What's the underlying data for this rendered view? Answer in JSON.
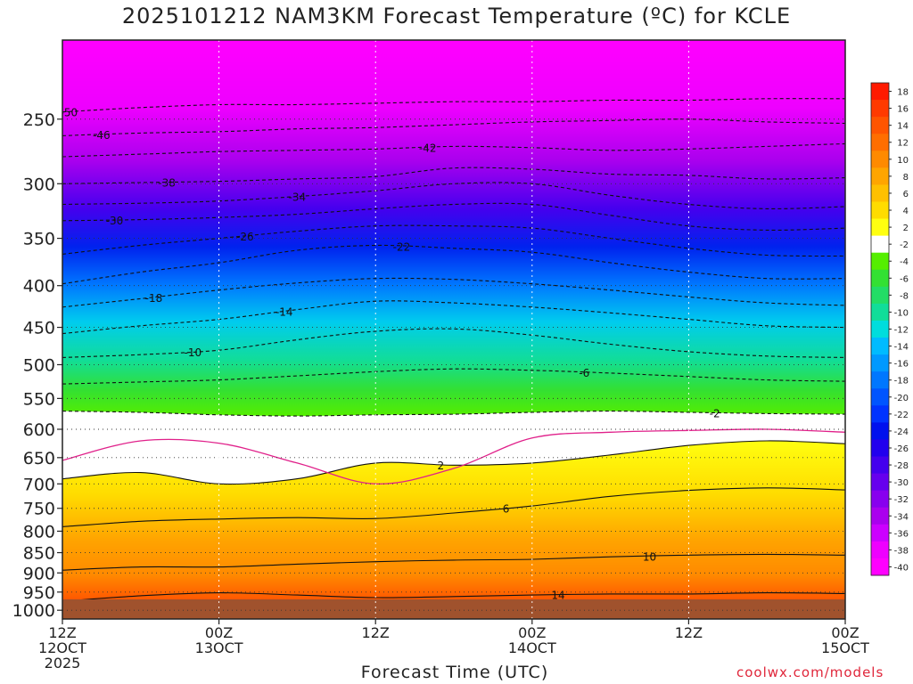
{
  "page": {
    "title": "2025101212 NAM3KM Forecast Temperature (ºC) for KCLE",
    "credit": "coolwx.com/models"
  },
  "chart_data": {
    "type": "heatmap",
    "title": "2025101212 NAM3KM Forecast Temperature (ºC) for KCLE",
    "xlabel": "Forecast Time (UTC)",
    "ylabel": "",
    "x_ticks": [
      {
        "hour": 0,
        "l1": "12Z",
        "l2": "12OCT",
        "l3": "2025"
      },
      {
        "hour": 12,
        "l1": "00Z",
        "l2": "13OCT",
        "l3": ""
      },
      {
        "hour": 24,
        "l1": "12Z",
        "l2": "",
        "l3": ""
      },
      {
        "hour": 36,
        "l1": "00Z",
        "l2": "14OCT",
        "l3": ""
      },
      {
        "hour": 48,
        "l1": "12Z",
        "l2": "",
        "l3": ""
      },
      {
        "hour": 60,
        "l1": "00Z",
        "l2": "15OCT",
        "l3": ""
      }
    ],
    "xlim": [
      0,
      60
    ],
    "y_ticks": [
      250,
      300,
      350,
      400,
      450,
      500,
      550,
      600,
      650,
      700,
      750,
      800,
      850,
      900,
      950,
      1000
    ],
    "ylim_hpa": [
      200,
      1025
    ],
    "ground_hpa": 1000,
    "colorbar": {
      "labels": [
        18,
        16,
        14,
        12,
        10,
        8,
        6,
        4,
        2,
        -2,
        -4,
        -6,
        -8,
        -10,
        -12,
        -14,
        -16,
        -18,
        -20,
        -22,
        -24,
        -26,
        -28,
        -30,
        -32,
        -34,
        -36,
        -38,
        -40
      ],
      "colors": [
        "#ff1a00",
        "#ff3a00",
        "#ff5500",
        "#ff6e00",
        "#ff8a00",
        "#ffa500",
        "#ffc000",
        "#ffdc00",
        "#ffff10",
        "#ffffff",
        "#55ee00",
        "#33e033",
        "#22dd66",
        "#11dd99",
        "#00dddd",
        "#00bbff",
        "#0099ff",
        "#0077ff",
        "#0055ff",
        "#0033ff",
        "#0011ee",
        "#2200ee",
        "#4400ee",
        "#6600ee",
        "#8800ee",
        "#aa00ee",
        "#cc00ff",
        "#ee00ff",
        "#ff00ff"
      ]
    },
    "levels": [
      {
        "label": "-50",
        "lh": 0.5,
        "v": [
          245,
          242,
          240,
          240,
          239,
          238,
          238,
          237,
          237,
          236,
          236
        ]
      },
      {
        "label": "-46",
        "lh": 3,
        "v": [
          262,
          260,
          259,
          257,
          256,
          254,
          252,
          251,
          250,
          252,
          253
        ]
      },
      {
        "label": "-42",
        "lh": 28,
        "v": [
          278,
          276,
          274,
          273,
          272,
          270,
          271,
          273,
          272,
          270,
          268
        ]
      },
      {
        "label": "-38",
        "lh": 8,
        "v": [
          300,
          299,
          298,
          296,
          294,
          287,
          288,
          292,
          293,
          296,
          295
        ]
      },
      {
        "label": "-34",
        "lh": 18,
        "v": [
          318,
          317,
          315,
          311,
          306,
          300,
          300,
          310,
          318,
          322,
          320
        ]
      },
      {
        "label": "-30",
        "lh": 4,
        "v": [
          333,
          332,
          330,
          327,
          322,
          318,
          318,
          328,
          338,
          342,
          340
        ]
      },
      {
        "label": "-26",
        "lh": 14,
        "v": [
          366,
          357,
          350,
          343,
          338,
          338,
          340,
          350,
          360,
          367,
          368
        ]
      },
      {
        "label": "-22",
        "lh": 26,
        "v": [
          398,
          385,
          375,
          362,
          357,
          360,
          364,
          375,
          385,
          392,
          392
        ]
      },
      {
        "label": "-18",
        "lh": 7,
        "v": [
          425,
          415,
          405,
          397,
          392,
          393,
          398,
          405,
          413,
          420,
          423
        ]
      },
      {
        "label": "-14",
        "lh": 17,
        "v": [
          458,
          448,
          440,
          428,
          418,
          420,
          425,
          432,
          440,
          448,
          450
        ]
      },
      {
        "label": "-10",
        "lh": 10,
        "v": [
          490,
          486,
          480,
          466,
          455,
          452,
          460,
          472,
          482,
          488,
          490
        ]
      },
      {
        "label": "-6",
        "lh": 40,
        "v": [
          528,
          525,
          522,
          516,
          510,
          506,
          508,
          512,
          517,
          522,
          524
        ]
      },
      {
        "label": "-2",
        "lh": 50,
        "v": [
          570,
          572,
          576,
          578,
          576,
          575,
          572,
          570,
          572,
          574,
          575
        ]
      }
    ],
    "warm_levels": [
      {
        "label": "2",
        "lh": 29,
        "v": [
          690,
          678,
          700,
          690,
          660,
          664,
          660,
          645,
          628,
          620,
          625
        ]
      },
      {
        "label": "6",
        "lh": 34,
        "v": [
          790,
          778,
          773,
          770,
          772,
          760,
          745,
          725,
          713,
          708,
          712
        ]
      },
      {
        "label": "10",
        "lh": 45,
        "v": [
          893,
          885,
          885,
          878,
          872,
          868,
          866,
          860,
          856,
          854,
          856
        ]
      },
      {
        "label": "14",
        "lh": 38,
        "v": [
          975,
          960,
          952,
          958,
          965,
          962,
          958,
          955,
          955,
          952,
          954
        ]
      }
    ],
    "inversion_hpa": [
      655,
      620,
      624,
      660,
      700,
      670,
      615,
      605,
      602,
      600,
      605
    ],
    "label_positions_note": "lh is forecast hour of contour label"
  }
}
